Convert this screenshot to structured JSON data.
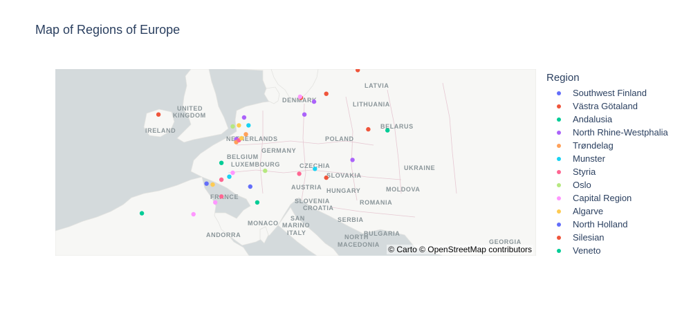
{
  "title": "Map of Regions of Europe",
  "legend": {
    "title": "Region",
    "items": [
      {
        "label": "Southwest Finland",
        "color": "#636efa"
      },
      {
        "label": "Västra Götaland",
        "color": "#EF553B"
      },
      {
        "label": "Andalusia",
        "color": "#00cc96"
      },
      {
        "label": "North Rhine-Westphalia",
        "color": "#ab63fa"
      },
      {
        "label": "Trøndelag",
        "color": "#FFA15A"
      },
      {
        "label": "Munster",
        "color": "#19d3f3"
      },
      {
        "label": "Styria",
        "color": "#FF6692"
      },
      {
        "label": "Oslo",
        "color": "#B6E880"
      },
      {
        "label": "Capital Region",
        "color": "#FF97FF"
      },
      {
        "label": "Algarve",
        "color": "#FECB52"
      },
      {
        "label": "North Holland",
        "color": "#636efa"
      },
      {
        "label": "Silesian",
        "color": "#EF553B"
      },
      {
        "label": "Veneto",
        "color": "#00cc96"
      }
    ]
  },
  "map": {
    "attribution": "© Carto © OpenStreetMap contributors",
    "water_color": "#d4dadc",
    "land_color": "#f7f7f5",
    "country_labels": [
      "LATVIA",
      "LITHUANIA",
      "DENMARK",
      "UNITED",
      "KINGDOM",
      "IRELAND",
      "BELARUS",
      "POLAND",
      "NETHERLANDS",
      "GERMANY",
      "BELGIUM",
      "LUXEMBOURG",
      "CZECHIA",
      "UKRAINE",
      "SLOVAKIA",
      "FRANCE",
      "AUSTRIA",
      "HUNGARY",
      "MOLDOVA",
      "ROMANIA",
      "SLOVENIA",
      "CROATIA",
      "SAN",
      "MARINO",
      "MONACO",
      "SERBIA",
      "ANDORRA",
      "ITALY",
      "BULGARIA",
      "NORTH",
      "MACEDONIA",
      "GEORGIA"
    ],
    "points": [
      {
        "lon": 1.3,
        "lat": 46.9,
        "color": "#636efa"
      },
      {
        "lon": 6.3,
        "lat": 46.6,
        "color": "#636efa"
      },
      {
        "lon": 15.0,
        "lat": 56.0,
        "color": "#EF553B"
      },
      {
        "lon": 18.6,
        "lat": 58.4,
        "color": "#EF553B"
      },
      {
        "lon": 12.1,
        "lat": 55.6,
        "color": "#EF553B"
      },
      {
        "lon": -4.2,
        "lat": 53.9,
        "color": "#EF553B"
      },
      {
        "lon": 19.8,
        "lat": 52.4,
        "color": "#EF553B"
      },
      {
        "lon": 15.0,
        "lat": 47.5,
        "color": "#EF553B"
      },
      {
        "lon": 22.0,
        "lat": 52.3,
        "color": "#00cc96"
      },
      {
        "lon": 3.0,
        "lat": 49.0,
        "color": "#00cc96"
      },
      {
        "lon": 7.1,
        "lat": 45.0,
        "color": "#00cc96"
      },
      {
        "lon": -6.1,
        "lat": 43.9,
        "color": "#00cc96"
      },
      {
        "lon": 5.6,
        "lat": 53.6,
        "color": "#ab63fa"
      },
      {
        "lon": 13.6,
        "lat": 55.2,
        "color": "#ab63fa"
      },
      {
        "lon": 12.5,
        "lat": 53.9,
        "color": "#ab63fa"
      },
      {
        "lon": 4.7,
        "lat": 51.4,
        "color": "#ab63fa"
      },
      {
        "lon": 18.0,
        "lat": 49.3,
        "color": "#ab63fa"
      },
      {
        "lon": 5.8,
        "lat": 51.9,
        "color": "#FFA15A"
      },
      {
        "lon": 4.7,
        "lat": 51.1,
        "color": "#FFA15A"
      },
      {
        "lon": 3.9,
        "lat": 47.6,
        "color": "#19d3f3"
      },
      {
        "lon": 6.1,
        "lat": 52.8,
        "color": "#19d3f3"
      },
      {
        "lon": 13.7,
        "lat": 48.4,
        "color": "#19d3f3"
      },
      {
        "lon": 5.0,
        "lat": 51.3,
        "color": "#FF6692"
      },
      {
        "lon": 3.0,
        "lat": 47.3,
        "color": "#FF6692"
      },
      {
        "lon": 3.0,
        "lat": 45.6,
        "color": "#FF6692"
      },
      {
        "lon": 11.9,
        "lat": 47.9,
        "color": "#FF6692"
      },
      {
        "lon": 8.0,
        "lat": 48.2,
        "color": "#B6E880"
      },
      {
        "lon": 4.3,
        "lat": 52.7,
        "color": "#B6E880"
      },
      {
        "lon": 4.3,
        "lat": 48.0,
        "color": "#FF97FF"
      },
      {
        "lon": 2.3,
        "lat": 45.0,
        "color": "#FF97FF"
      },
      {
        "lon": 12.0,
        "lat": 55.7,
        "color": "#FF97FF"
      },
      {
        "lon": -0.2,
        "lat": 43.8,
        "color": "#FF97FF"
      },
      {
        "lon": 2.0,
        "lat": 46.8,
        "color": "#FECB52"
      },
      {
        "lon": 5.0,
        "lat": 52.8,
        "color": "#FECB52"
      },
      {
        "lon": 5.3,
        "lat": 51.5,
        "color": "#FECB52"
      }
    ]
  }
}
